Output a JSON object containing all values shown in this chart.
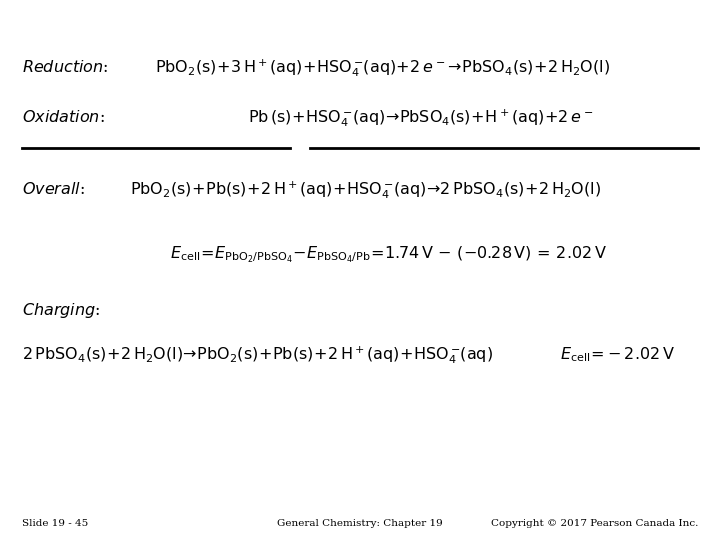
{
  "bg_color": "#ffffff",
  "slide_number": "Slide 19 - 45",
  "footer_center": "General Chemistry: Chapter 19",
  "footer_right": "Copyright © 2017 Pearson Canada Inc.",
  "font_size_main": 11.5,
  "font_size_label": 11.5,
  "font_size_footer": 7.5
}
